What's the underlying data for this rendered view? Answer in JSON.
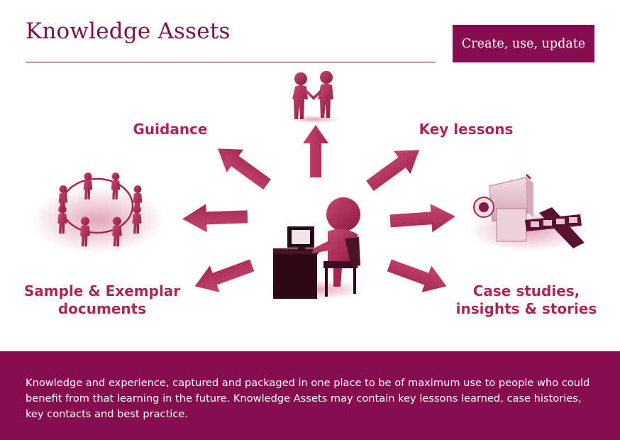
{
  "header": {
    "title": "Knowledge Assets",
    "badge": "Create, use, update"
  },
  "nodes": {
    "guidance": [
      "Guidance"
    ],
    "key_lessons": [
      "Key lessons"
    ],
    "samples": [
      "Sample & Exemplar",
      "documents"
    ],
    "case_studies": [
      "Case studies,",
      "insights & stories"
    ]
  },
  "footer": {
    "text": "Knowledge and experience, captured and packaged in one place to be of maximum use to  people who could benefit from that learning in the future. Knowledge Assets may contain key lessons learned, case histories, key contacts and best practice."
  },
  "colors": {
    "brand": "#870c4e",
    "accent": "#a8265a",
    "arrow": "#b5305e"
  }
}
